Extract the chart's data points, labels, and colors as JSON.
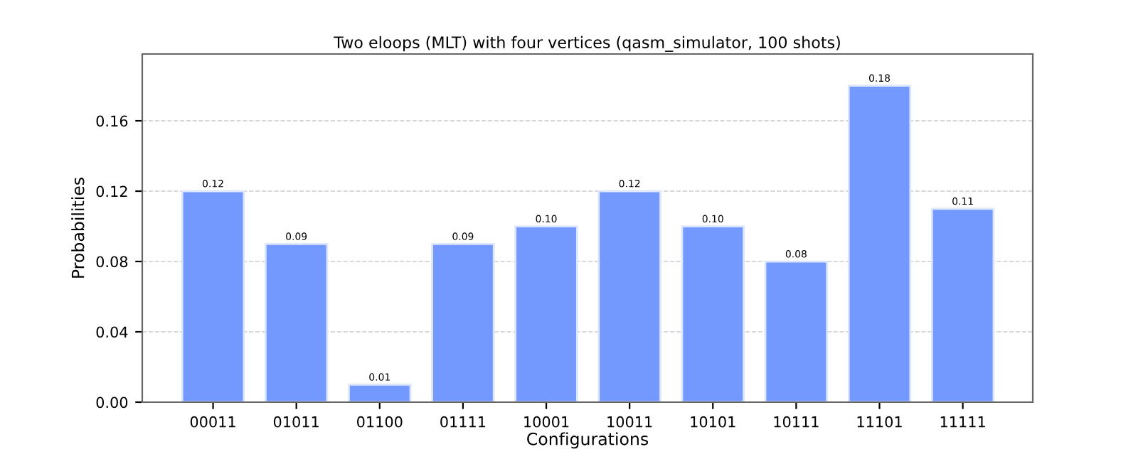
{
  "chart_data": {
    "type": "bar",
    "title": "Two eloops (MLT) with four vertices (qasm_simulator, 100 shots)",
    "xlabel": "Configurations",
    "ylabel": "Probabilities",
    "categories": [
      "00011",
      "01011",
      "01100",
      "01111",
      "10001",
      "10011",
      "10101",
      "10111",
      "11101",
      "11111"
    ],
    "values": [
      0.12,
      0.09,
      0.01,
      0.09,
      0.1,
      0.12,
      0.1,
      0.08,
      0.18,
      0.11
    ],
    "value_labels": [
      "0.12",
      "0.09",
      "0.01",
      "0.09",
      "0.10",
      "0.12",
      "0.10",
      "0.08",
      "0.18",
      "0.11"
    ],
    "color": "#7399fe",
    "ylim": [
      0,
      0.198
    ],
    "yticks": [
      {
        "value": 0,
        "label": "0.00"
      },
      {
        "value": 0.04,
        "label": "0.04"
      },
      {
        "value": 0.08,
        "label": "0.08"
      },
      {
        "value": 0.12,
        "label": "0.12"
      },
      {
        "value": 0.16,
        "label": "0.16"
      }
    ],
    "grid": "y"
  }
}
